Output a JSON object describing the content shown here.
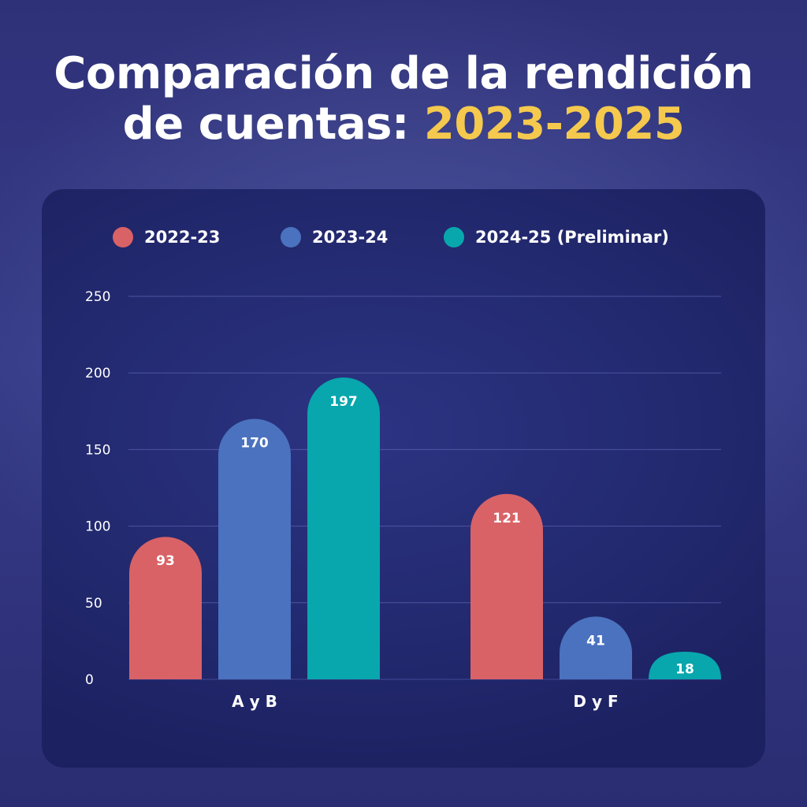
{
  "title": {
    "line1": "Comparación de la rendición",
    "line2_prefix": "de cuentas: ",
    "line2_highlight": "2023-2025"
  },
  "colors": {
    "highlight": "#f4c94e",
    "series_2022": "#d96266",
    "series_2023": "#4a72bf",
    "series_2024": "#08a6ad"
  },
  "chart_data": {
    "type": "bar",
    "title": "Comparación de la rendición de cuentas: 2023-2025",
    "xlabel": "",
    "ylabel": "",
    "categories": [
      "A y B",
      "D y F"
    ],
    "series": [
      {
        "name": "2022-23",
        "color": "#d96266",
        "values": [
          93,
          121
        ]
      },
      {
        "name": "2023-24",
        "color": "#4a72bf",
        "values": [
          170,
          41
        ]
      },
      {
        "name": "2024-25 (Preliminar)",
        "color": "#08a6ad",
        "values": [
          197,
          18
        ]
      }
    ],
    "ylim": [
      0,
      250
    ],
    "yticks": [
      0,
      50,
      100,
      150,
      200,
      250
    ],
    "grid": true,
    "legend_position": "top"
  }
}
